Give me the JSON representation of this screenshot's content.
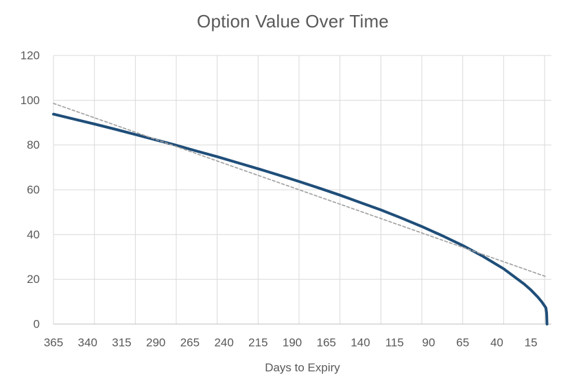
{
  "chart_data": {
    "type": "line",
    "title": "Option Value Over Time",
    "xlabel": "Days to Expiry",
    "ylabel": "",
    "legend": "none",
    "grid": true,
    "x_axis": {
      "max": 365,
      "min": 0,
      "reversed": true,
      "tick_labels": [
        365,
        340,
        315,
        290,
        265,
        240,
        215,
        190,
        165,
        140,
        115,
        90,
        65,
        40,
        15
      ],
      "gridline_values": [
        365,
        335,
        305,
        275,
        245,
        215,
        185,
        155,
        125,
        95,
        65,
        35,
        5
      ]
    },
    "y_axis": {
      "min": 0,
      "max": 120,
      "ticks": [
        0,
        20,
        40,
        60,
        80,
        100,
        120
      ]
    },
    "series": [
      {
        "key": "option-value",
        "name": "Option Value",
        "style": "solid",
        "color": "#1f4e79",
        "width": 4,
        "points": [
          [
            365,
            93.8
          ],
          [
            350,
            91.6
          ],
          [
            335,
            89.4
          ],
          [
            320,
            87.1
          ],
          [
            305,
            84.7
          ],
          [
            290,
            82.3
          ],
          [
            275,
            79.9
          ],
          [
            260,
            77.3
          ],
          [
            245,
            74.8
          ],
          [
            230,
            72.1
          ],
          [
            215,
            69.4
          ],
          [
            200,
            66.6
          ],
          [
            185,
            63.7
          ],
          [
            170,
            60.7
          ],
          [
            155,
            57.6
          ],
          [
            140,
            54.3
          ],
          [
            125,
            51.0
          ],
          [
            110,
            47.4
          ],
          [
            95,
            43.6
          ],
          [
            80,
            39.5
          ],
          [
            65,
            35.1
          ],
          [
            50,
            30.2
          ],
          [
            35,
            24.7
          ],
          [
            20,
            17.9
          ],
          [
            15,
            15.2
          ],
          [
            10,
            12.1
          ],
          [
            7,
            9.9
          ],
          [
            5,
            8.1
          ],
          [
            4,
            7.2
          ],
          [
            3.5,
            5.0
          ],
          [
            3.2,
            0
          ]
        ]
      },
      {
        "key": "trendline",
        "name": "Trendline",
        "style": "dashed",
        "color": "#a3a3a3",
        "width": 1.7,
        "points": [
          [
            365,
            98.6
          ],
          [
            4,
            21.2
          ]
        ]
      }
    ]
  },
  "colors": {
    "gridline": "#d9d9d9",
    "axis_line": "#bfbfbf",
    "text": "#595959",
    "background": "#ffffff"
  }
}
